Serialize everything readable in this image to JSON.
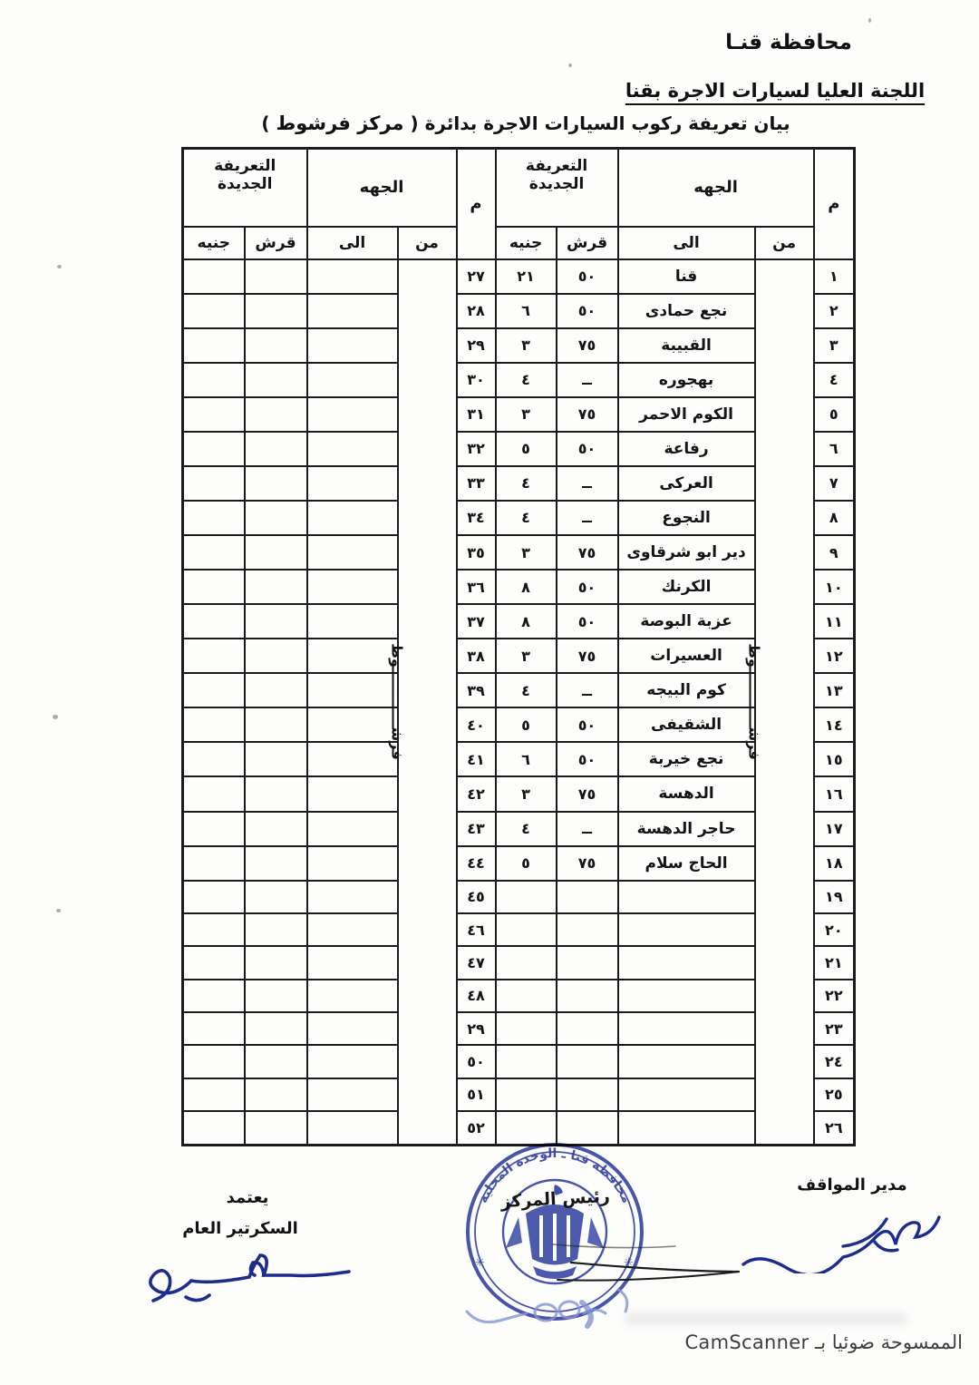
{
  "header": {
    "governorate": "محافظة قنـا",
    "committee": "اللجنة العليا لسيارات الاجرة بقنا",
    "statement_prefix": "بيان تعريفة ركوب السيارات الاجرة بدائرة ( ",
    "statement_center": "مركز فرشوط",
    "statement_suffix": " )"
  },
  "table": {
    "headers": {
      "num": "م",
      "side": "الجهه",
      "from": "من",
      "to": "الى",
      "new_tariff": "التعريفة الجديدة",
      "qirsh": "قرش",
      "geneih": "جنيه"
    },
    "from_value": "فرشــــــــــــوط",
    "right_rows": [
      {
        "num": "١",
        "to": "قنا",
        "qirsh": "٥٠",
        "geneih": "٢١"
      },
      {
        "num": "٢",
        "to": "نجع حمادى",
        "qirsh": "٥٠",
        "geneih": "٦"
      },
      {
        "num": "٣",
        "to": "القبيبة",
        "qirsh": "٧٥",
        "geneih": "٣"
      },
      {
        "num": "٤",
        "to": "بهجوره",
        "qirsh": "ــ",
        "geneih": "٤"
      },
      {
        "num": "٥",
        "to": "الكوم الاحمر",
        "qirsh": "٧٥",
        "geneih": "٣"
      },
      {
        "num": "٦",
        "to": "رفاعة",
        "qirsh": "٥٠",
        "geneih": "٥"
      },
      {
        "num": "٧",
        "to": "العركى",
        "qirsh": "ــ",
        "geneih": "٤"
      },
      {
        "num": "٨",
        "to": "النجوع",
        "qirsh": "ــ",
        "geneih": "٤"
      },
      {
        "num": "٩",
        "to": "دير ابو شرقاوى",
        "qirsh": "٧٥",
        "geneih": "٣"
      },
      {
        "num": "١٠",
        "to": "الكرنك",
        "qirsh": "٥٠",
        "geneih": "٨"
      },
      {
        "num": "١١",
        "to": "عزبة البوصة",
        "qirsh": "٥٠",
        "geneih": "٨"
      },
      {
        "num": "١٢",
        "to": "العسيرات",
        "qirsh": "٧٥",
        "geneih": "٣"
      },
      {
        "num": "١٣",
        "to": "كوم البيجه",
        "qirsh": "ــ",
        "geneih": "٤"
      },
      {
        "num": "١٤",
        "to": "الشقيفى",
        "qirsh": "٥٠",
        "geneih": "٥"
      },
      {
        "num": "١٥",
        "to": "نجع خيربة",
        "qirsh": "٥٠",
        "geneih": "٦"
      },
      {
        "num": "١٦",
        "to": "الدهسة",
        "qirsh": "٧٥",
        "geneih": "٣"
      },
      {
        "num": "١٧",
        "to": "حاجر الدهسة",
        "qirsh": "ــ",
        "geneih": "٤"
      },
      {
        "num": "١٨",
        "to": "الحاج سلام",
        "qirsh": "٧٥",
        "geneih": "٥"
      },
      {
        "num": "١٩",
        "to": "",
        "qirsh": "",
        "geneih": ""
      },
      {
        "num": "٢٠",
        "to": "",
        "qirsh": "",
        "geneih": ""
      },
      {
        "num": "٢١",
        "to": "",
        "qirsh": "",
        "geneih": ""
      },
      {
        "num": "٢٢",
        "to": "",
        "qirsh": "",
        "geneih": ""
      },
      {
        "num": "٢٣",
        "to": "",
        "qirsh": "",
        "geneih": ""
      },
      {
        "num": "٢٤",
        "to": "",
        "qirsh": "",
        "geneih": ""
      },
      {
        "num": "٢٥",
        "to": "",
        "qirsh": "",
        "geneih": ""
      },
      {
        "num": "٢٦",
        "to": "",
        "qirsh": "",
        "geneih": ""
      }
    ],
    "left_rows": [
      {
        "num": "٢٧"
      },
      {
        "num": "٢٨"
      },
      {
        "num": "٢٩"
      },
      {
        "num": "٣٠"
      },
      {
        "num": "٣١"
      },
      {
        "num": "٣٢"
      },
      {
        "num": "٣٣"
      },
      {
        "num": "٣٤"
      },
      {
        "num": "٣٥"
      },
      {
        "num": "٣٦"
      },
      {
        "num": "٣٧"
      },
      {
        "num": "٣٨"
      },
      {
        "num": "٣٩"
      },
      {
        "num": "٤٠"
      },
      {
        "num": "٤١"
      },
      {
        "num": "٤٢"
      },
      {
        "num": "٤٣"
      },
      {
        "num": "٤٤"
      },
      {
        "num": "٤٥"
      },
      {
        "num": "٤٦"
      },
      {
        "num": "٤٧"
      },
      {
        "num": "٤٨"
      },
      {
        "num": "٢٩"
      },
      {
        "num": "٥٠"
      },
      {
        "num": "٥١"
      },
      {
        "num": "٥٢"
      }
    ]
  },
  "footer": {
    "stops_manager": "مدير المواقف",
    "approval": "يعتمد",
    "secretary_general": "السكرتير العام",
    "center_head": "رئيس المركز",
    "stamp_arc": "محافظة قنا ـ الوحدة المحلية",
    "camscanner": "الممسوحة ضوئيا بـ CamScanner"
  },
  "colors": {
    "stamp_blue": "#2e3ea0",
    "signature_blue": "#1d2d8e",
    "text_black": "#141414"
  }
}
